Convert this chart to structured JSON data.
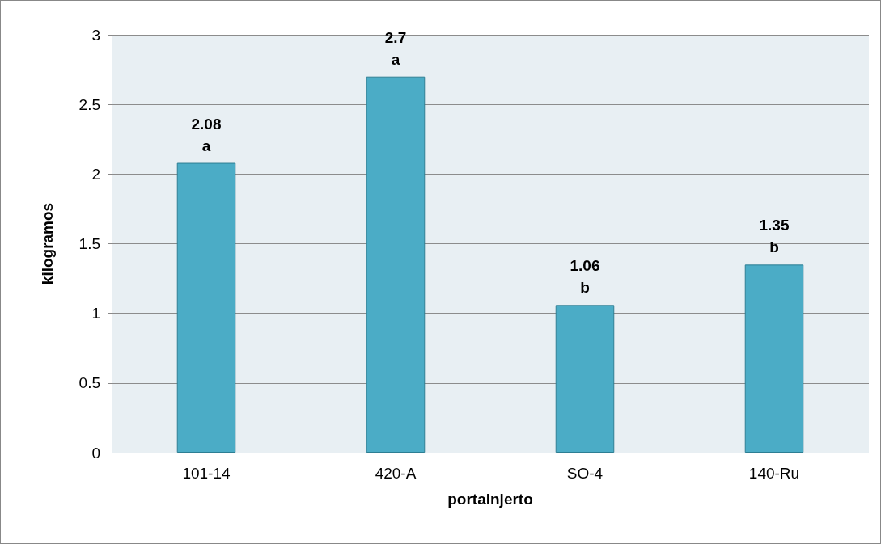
{
  "chart_data": {
    "type": "bar",
    "xlabel": "portainjerto",
    "ylabel": "kilogramos",
    "categories": [
      "101-14",
      "420-A",
      "SO-4",
      "140-Ru"
    ],
    "values": [
      2.08,
      2.7,
      1.06,
      1.35
    ],
    "value_labels": [
      "2.08\na",
      "2.7\na",
      "1.06\nb",
      "1.35\nb"
    ],
    "color": "#4bacc6",
    "ylim": [
      0,
      3
    ],
    "yticks": [
      0,
      0.5,
      1,
      1.5,
      2,
      2.5,
      3
    ],
    "grid": "y"
  }
}
